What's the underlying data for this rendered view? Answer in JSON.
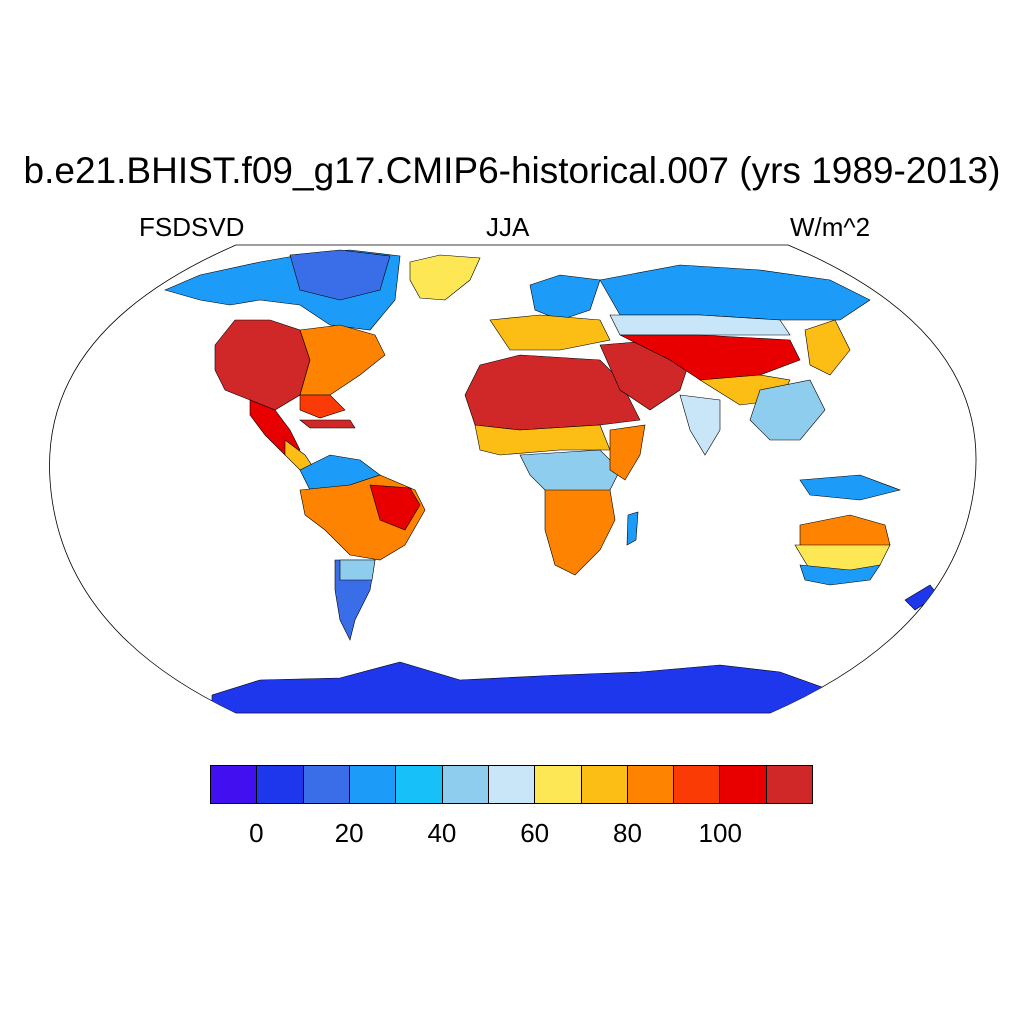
{
  "title": "b.e21.BHIST.f09_g17.CMIP6-historical.007 (yrs 1989-2013)",
  "left_label": "FSDSVD",
  "center_label": "JJA",
  "right_label": "W/m^2",
  "colorbar": {
    "colors": [
      "#4210f0",
      "#1e37ec",
      "#3a6ee8",
      "#1c9cf8",
      "#17c0f8",
      "#8fcdee",
      "#c9e6f8",
      "#fde755",
      "#fcbe14",
      "#fd8300",
      "#fb3b06",
      "#e80000",
      "#d02828"
    ],
    "tick_labels": [
      "0",
      "20",
      "40",
      "60",
      "80",
      "100"
    ],
    "tick_values": [
      0,
      20,
      40,
      60,
      80,
      100
    ],
    "bounds": [
      -10,
      120
    ]
  },
  "map": {
    "projection": "Robinson",
    "field": "FSDSVD",
    "season": "JJA",
    "units": "W/m^2",
    "regions": [
      {
        "name": "North America west/Mexico",
        "level": 110
      },
      {
        "name": "North America east",
        "level": 90
      },
      {
        "name": "Canada/Alaska",
        "level": 30
      },
      {
        "name": "Greenland",
        "level": 65
      },
      {
        "name": "Sahara/Arabia",
        "level": 110
      },
      {
        "name": "Central Asia",
        "level": 100
      },
      {
        "name": "Siberia",
        "level": 30
      },
      {
        "name": "Central Africa",
        "level": 40
      },
      {
        "name": "Southern Africa",
        "level": 90
      },
      {
        "name": "Amazon/Brazil",
        "level": 105
      },
      {
        "name": "Southern South America",
        "level": 20
      },
      {
        "name": "Australia",
        "level": 65
      },
      {
        "name": "Antarctica",
        "level": 5
      }
    ]
  }
}
